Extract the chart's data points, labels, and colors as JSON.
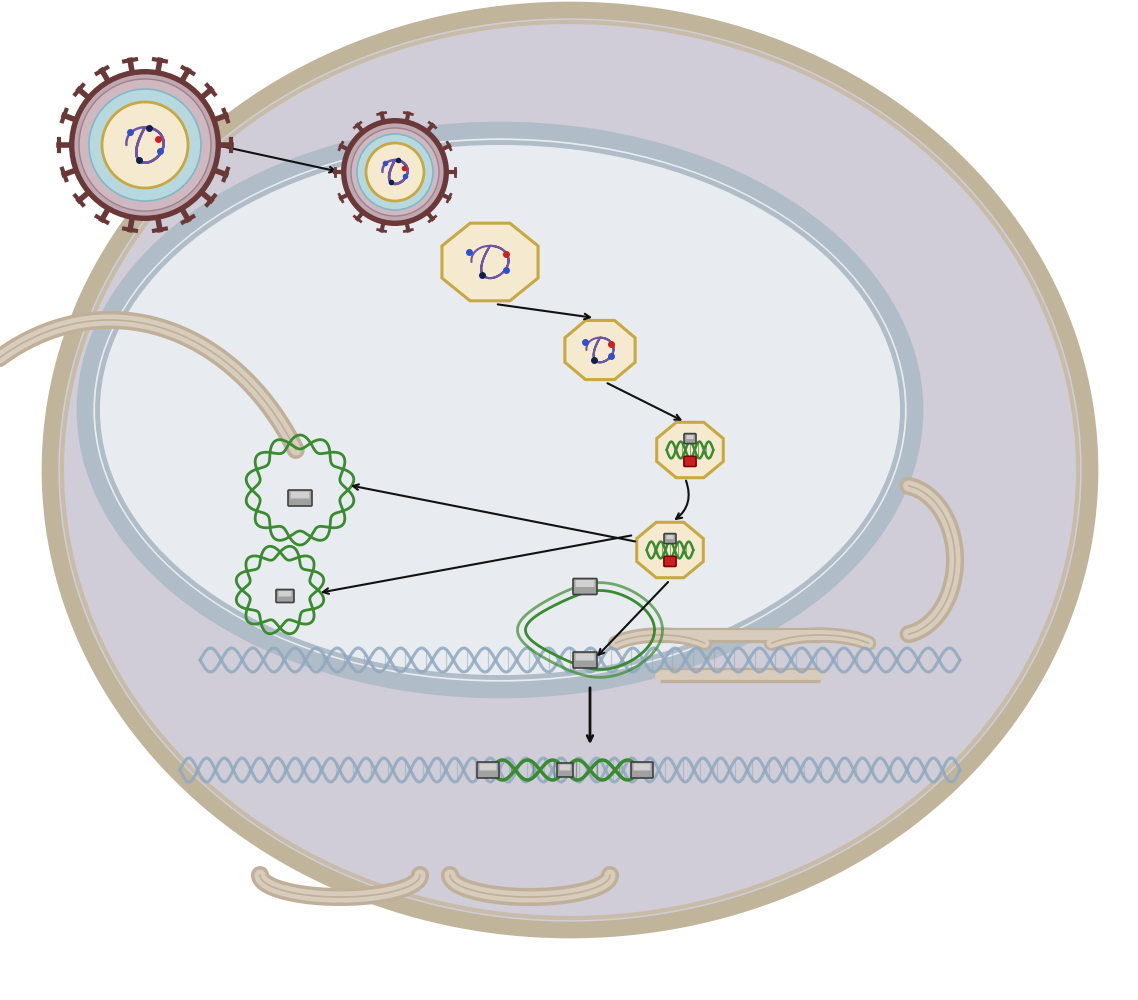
{
  "bg": "#ffffff",
  "cell_fill": "#d0cdd8",
  "cell_edge": "#c0b49a",
  "cell_edge2": "#c8bca8",
  "nucleus_fill": "#e8ecf0",
  "nucleus_edge": "#b0bcc8",
  "er_outer": "#c0b09a",
  "er_inner": "#d8ccbc",
  "cap_fill": "#f5ead0",
  "cap_edge": "#c8a840",
  "virus_dark": "#6a3838",
  "virus_mid": "#b8a0a8",
  "virus_light_blue": "#b8d8e0",
  "rna_purple": "#7055a0",
  "dna_green": "#3a8a30",
  "dna_blue": "#90a8c0",
  "dot_red": "#cc2020",
  "dot_blue": "#3050cc",
  "dot_dkblue": "#102050",
  "integ_gray": "#888888",
  "integ_dark": "#444444",
  "arrow": "#111111"
}
